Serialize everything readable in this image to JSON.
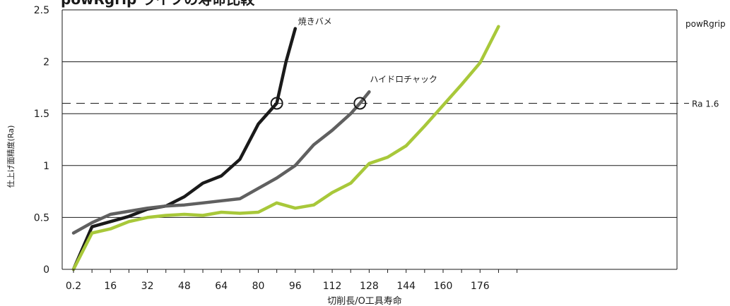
{
  "chart_data": {
    "type": "line",
    "title": "powRgrip ライフの寿命比較",
    "xlabel": "切削長/O工具寿命",
    "ylabel": "仕上げ面精度(Ra)",
    "xlim": [
      0,
      192
    ],
    "ylim": [
      0,
      2.5
    ],
    "yticks": [
      0,
      0.5,
      1,
      1.5,
      2,
      2.5
    ],
    "ytick_labels": [
      "0",
      "0.5",
      "1",
      "1.5",
      "2",
      "2.5"
    ],
    "xticks": [
      0.2,
      16,
      32,
      48,
      64,
      80,
      96,
      112,
      128,
      144,
      160,
      176
    ],
    "xtick_labels": [
      "0.2",
      "16",
      "32",
      "48",
      "64",
      "80",
      "96",
      "112",
      "128",
      "144",
      "160",
      "176"
    ],
    "grid": "horizontal",
    "reference_line": {
      "y": 1.6,
      "label": "Ra  1.6",
      "style": "dashed"
    },
    "series": [
      {
        "name": "焼きバメ",
        "color": "#1a1a1a",
        "x": [
          0.2,
          8,
          16,
          24,
          32,
          40,
          48,
          56,
          64,
          72,
          80,
          88,
          92,
          96
        ],
        "y": [
          0,
          0.41,
          0.46,
          0.51,
          0.58,
          0.61,
          0.7,
          0.83,
          0.9,
          1.06,
          1.4,
          1.6,
          2.0,
          2.32
        ]
      },
      {
        "name": "ハイドロチャック",
        "color": "#606060",
        "x": [
          0.2,
          8,
          16,
          24,
          32,
          40,
          48,
          56,
          64,
          72,
          80,
          88,
          96,
          104,
          112,
          120,
          124,
          128
        ],
        "y": [
          0.35,
          0.45,
          0.53,
          0.56,
          0.59,
          0.61,
          0.62,
          0.64,
          0.66,
          0.68,
          0.78,
          0.88,
          1.0,
          1.2,
          1.34,
          1.5,
          1.6,
          1.71
        ]
      },
      {
        "name": "powRgrip",
        "color": "#a8c83a",
        "x": [
          0.2,
          8,
          16,
          24,
          32,
          40,
          48,
          56,
          64,
          72,
          80,
          88,
          96,
          104,
          112,
          120,
          128,
          136,
          144,
          152,
          160,
          168,
          176,
          184
        ],
        "y": [
          0,
          0.35,
          0.39,
          0.46,
          0.5,
          0.52,
          0.53,
          0.52,
          0.55,
          0.54,
          0.55,
          0.64,
          0.59,
          0.62,
          0.74,
          0.83,
          1.02,
          1.08,
          1.19,
          1.38,
          1.58,
          1.78,
          1.99,
          2.34
        ]
      }
    ],
    "markers": [
      {
        "series": "焼きバメ",
        "x": 88,
        "y": 1.6,
        "shape": "open-circle"
      },
      {
        "series": "ハイドロチャック",
        "x": 124,
        "y": 1.6,
        "shape": "open-circle"
      }
    ]
  }
}
